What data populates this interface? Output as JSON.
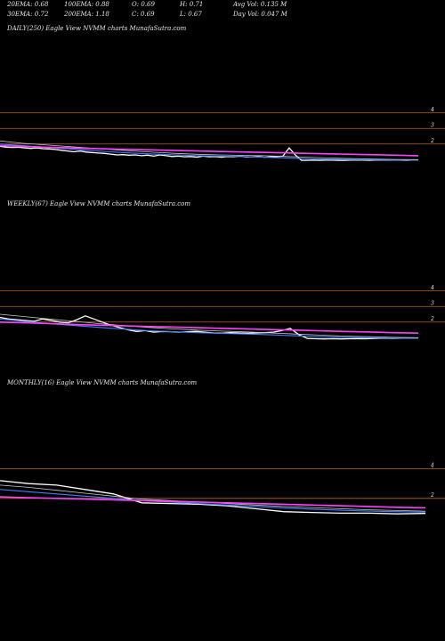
{
  "header": {
    "row1": [
      "20EMA: 0.68",
      "100EMA: 0.88",
      "O: 0.69",
      "H: 0.71",
      "Avg Vol: 0.135 M"
    ],
    "row2": [
      "30EMA: 0.72",
      "200EMA: 1.18",
      "C: 0.69",
      "L: 0.67",
      "Day Vol: 0.047 M"
    ]
  },
  "colors": {
    "price": "#ffffff",
    "ema_fast": "#3f7fff",
    "ema_mid": "#c8c8c8",
    "ema_slow": "#ff40ff",
    "level_line": "#b8641a",
    "background": "#000000"
  },
  "panels": [
    {
      "title": "DAILY(250) Eagle   View  NVMM charts MunafaSutra.com"
    },
    {
      "title": "WEEKLY(67) Eagle   View  NVMM charts MunafaSutra.com"
    },
    {
      "title": "MONTHLY(16) Eagle   View  NVMM charts MunafaSutra.com"
    }
  ],
  "chart_data": [
    {
      "type": "line",
      "timeframe": "daily",
      "ylim": [
        0.5,
        4.5
      ],
      "level_lines": [
        4,
        3,
        2
      ],
      "tick_labels": [
        "4",
        "3",
        "2"
      ],
      "series": [
        {
          "key": "price",
          "values": [
            1.85,
            1.8,
            1.78,
            1.8,
            1.75,
            1.72,
            1.75,
            1.7,
            1.68,
            1.65,
            1.6,
            1.55,
            1.5,
            1.55,
            1.48,
            1.45,
            1.42,
            1.4,
            1.35,
            1.3,
            1.32,
            1.28,
            1.3,
            1.25,
            1.28,
            1.22,
            1.3,
            1.25,
            1.2,
            1.22,
            1.18,
            1.2,
            1.15,
            1.22,
            1.18,
            1.2,
            1.15,
            1.2,
            1.18,
            1.22,
            1.16,
            1.18,
            1.2,
            1.15,
            1.18,
            1.2,
            1.22,
            1.75,
            1.3,
            0.95,
            0.95,
            0.96,
            0.95,
            0.97,
            0.96,
            0.95,
            0.95,
            0.96,
            0.97,
            0.96,
            0.95,
            0.96,
            0.97,
            0.96,
            0.97,
            0.96,
            0.95,
            0.97,
            0.96
          ]
        },
        {
          "key": "ema_fast",
          "values": [
            2.0,
            1.9,
            1.8,
            1.7,
            1.6,
            1.5,
            1.42,
            1.35,
            1.3,
            1.25,
            1.22,
            1.2,
            1.15,
            1.1,
            1.05,
            1.02,
            1.0,
            0.98,
            0.97,
            0.96
          ]
        },
        {
          "key": "ema_mid",
          "values": [
            2.2,
            2.05,
            1.95,
            1.85,
            1.75,
            1.65,
            1.55,
            1.47,
            1.4,
            1.34,
            1.3,
            1.27,
            1.25,
            1.2,
            1.15,
            1.1,
            1.06,
            1.03,
            1.01,
            1.0
          ]
        },
        {
          "key": "ema_slow",
          "values": [
            1.9,
            1.85,
            1.8,
            1.76,
            1.72,
            1.68,
            1.65,
            1.62,
            1.58,
            1.55,
            1.52,
            1.49,
            1.46,
            1.43,
            1.4,
            1.37,
            1.34,
            1.31,
            1.28,
            1.25
          ]
        }
      ]
    },
    {
      "type": "line",
      "timeframe": "weekly",
      "ylim": [
        0.5,
        4.5
      ],
      "level_lines": [
        4,
        3,
        2
      ],
      "tick_labels": [
        "4",
        "3",
        "2"
      ],
      "series": [
        {
          "key": "price",
          "values": [
            2.3,
            2.2,
            2.15,
            2.1,
            2.05,
            2.2,
            2.1,
            2.0,
            1.95,
            2.15,
            2.4,
            2.2,
            2.0,
            1.8,
            1.65,
            1.5,
            1.4,
            1.45,
            1.35,
            1.4,
            1.38,
            1.35,
            1.38,
            1.4,
            1.35,
            1.3,
            1.28,
            1.32,
            1.3,
            1.28,
            1.3,
            1.32,
            1.35,
            1.45,
            1.6,
            1.2,
            0.95,
            0.93,
            0.92,
            0.93,
            0.92,
            0.93,
            0.94,
            0.93,
            0.95,
            0.96,
            0.95,
            0.97,
            0.96,
            0.97
          ]
        },
        {
          "key": "ema_fast",
          "values": [
            2.2,
            2.05,
            1.9,
            1.78,
            1.66,
            1.55,
            1.45,
            1.38,
            1.32,
            1.27,
            1.23,
            1.18,
            1.12,
            1.06,
            1.02,
            0.99,
            0.97,
            0.96
          ]
        },
        {
          "key": "ema_mid",
          "values": [
            2.5,
            2.35,
            2.2,
            2.05,
            1.9,
            1.78,
            1.66,
            1.56,
            1.48,
            1.42,
            1.37,
            1.3,
            1.23,
            1.16,
            1.1,
            1.06,
            1.02,
            1.0
          ]
        },
        {
          "key": "ema_slow",
          "values": [
            2.0,
            1.95,
            1.9,
            1.85,
            1.8,
            1.76,
            1.72,
            1.68,
            1.64,
            1.6,
            1.56,
            1.52,
            1.48,
            1.44,
            1.4,
            1.36,
            1.32,
            1.29
          ]
        }
      ]
    },
    {
      "type": "line",
      "timeframe": "monthly",
      "ylim": [
        0.3,
        4.7
      ],
      "level_lines": [
        4,
        2
      ],
      "tick_labels": [
        "4",
        "2"
      ],
      "series": [
        {
          "key": "price",
          "values": [
            3.2,
            3.0,
            2.9,
            2.6,
            2.3,
            1.7,
            1.65,
            1.6,
            1.5,
            1.3,
            1.1,
            1.05,
            1.0,
            1.0,
            0.95,
            0.98
          ]
        },
        {
          "key": "ema_fast",
          "values": [
            2.6,
            2.45,
            2.3,
            2.15,
            2.0,
            1.85,
            1.75,
            1.65,
            1.55,
            1.45,
            1.35,
            1.27,
            1.2,
            1.14,
            1.1,
            1.07
          ]
        },
        {
          "key": "ema_mid",
          "values": [
            2.9,
            2.75,
            2.55,
            2.35,
            2.15,
            1.95,
            1.85,
            1.75,
            1.65,
            1.55,
            1.45,
            1.38,
            1.3,
            1.23,
            1.18,
            1.14
          ]
        },
        {
          "key": "ema_slow",
          "values": [
            2.1,
            2.05,
            2.0,
            1.95,
            1.9,
            1.85,
            1.8,
            1.75,
            1.7,
            1.65,
            1.6,
            1.55,
            1.5,
            1.45,
            1.4,
            1.36
          ]
        }
      ]
    }
  ]
}
